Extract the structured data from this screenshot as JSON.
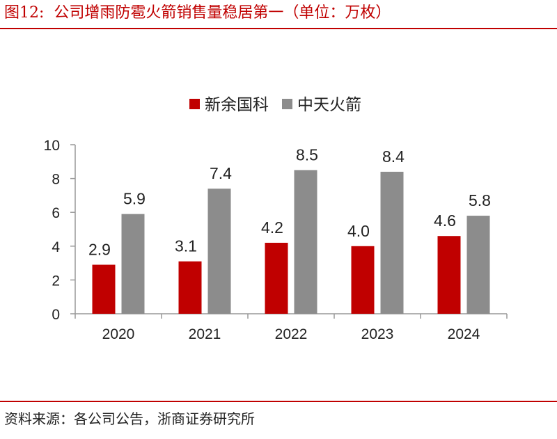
{
  "header": {
    "fig_label": "图12:",
    "title": "公司增雨防雹火箭销售量稳居第一（单位：万枚）"
  },
  "footer": {
    "source": "资料来源：各公司公告，浙商证券研究所"
  },
  "colors": {
    "accent": "#c00000",
    "series_1": "#c00000",
    "series_2": "#8c8c8c",
    "axis": "#999999"
  },
  "chart_data": {
    "type": "bar",
    "categories": [
      "2020",
      "2021",
      "2022",
      "2023",
      "2024"
    ],
    "series": [
      {
        "name": "新余国科",
        "values": [
          2.9,
          3.1,
          4.2,
          4.0,
          4.6
        ],
        "labels": [
          "2.9",
          "3.1",
          "4.2",
          "4.0",
          "4.6"
        ]
      },
      {
        "name": "中天火箭",
        "values": [
          5.9,
          7.4,
          8.5,
          8.4,
          5.8
        ],
        "labels": [
          "5.9",
          "7.4",
          "8.5",
          "8.4",
          "5.8"
        ]
      }
    ],
    "ylim": [
      0,
      10
    ],
    "yticks": [
      0,
      2,
      4,
      6,
      8,
      10
    ],
    "ytick_labels": [
      "0",
      "2",
      "4",
      "6",
      "8",
      "10"
    ],
    "grid": false,
    "legend_position": "top-center",
    "data_labels": true
  }
}
